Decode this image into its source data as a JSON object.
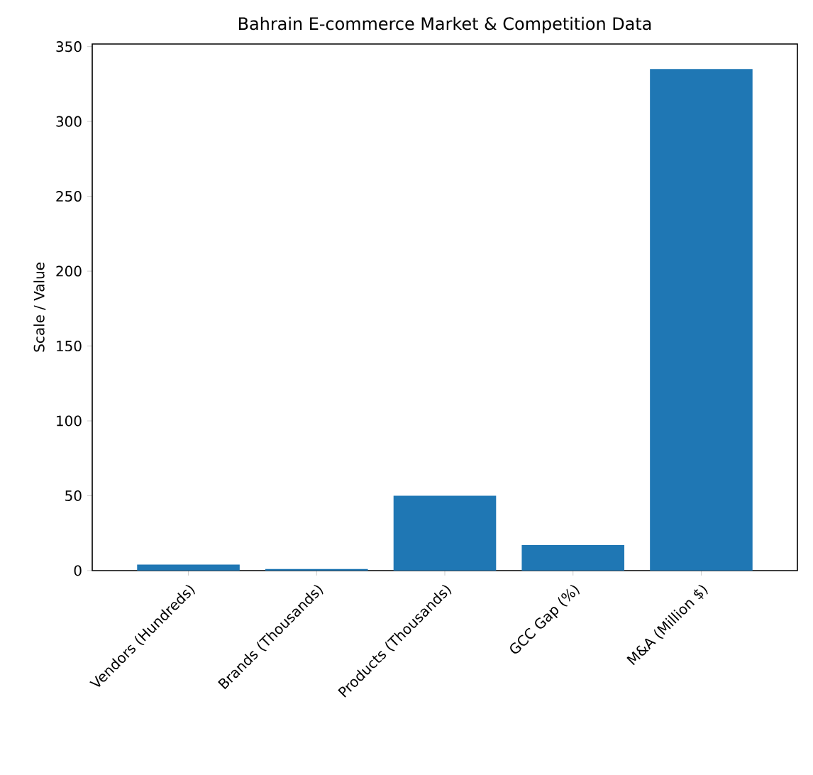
{
  "chart_data": {
    "type": "bar",
    "title": "Bahrain E-commerce Market & Competition Data",
    "ylabel": "Scale / Value",
    "categories": [
      "Vendors (Hundreds)",
      "Brands (Thousands)",
      "Products (Thousands)",
      "GCC Gap (%)",
      "M&A (Million $)"
    ],
    "values": [
      4,
      1,
      50,
      17,
      335
    ],
    "color": "#1f77b4",
    "ylim": [
      0,
      351.75
    ],
    "yticks": [
      0,
      50,
      100,
      150,
      200,
      250,
      300,
      350
    ],
    "grid": false
  }
}
